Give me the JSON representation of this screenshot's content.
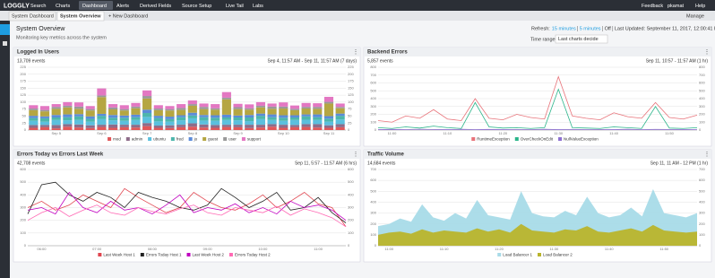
{
  "nav": {
    "logo": "LOGGLY",
    "items": [
      "Search",
      "Charts",
      "Dashboard",
      "Alerts",
      "Derived Fields",
      "Source Setup",
      "Live Tail",
      "Labs"
    ],
    "right": [
      "Feedback",
      "pkamat",
      "Help"
    ]
  },
  "tabs": {
    "items": [
      "System Dashboard",
      "System Overview",
      "+ New Dashboard"
    ],
    "manage": "Manage"
  },
  "header": {
    "title": "System Overview",
    "subtitle": "Monitoring key metrics across the system",
    "refresh_label": "Refresh:",
    "refresh_options": [
      "15 minutes",
      "5 minutes",
      "Off"
    ],
    "last_updated": "Last Updated: September 11, 2017, 12:00:41 PM",
    "time_range_label": "Time range:",
    "time_range": "Last charts decide"
  },
  "panels": [
    {
      "title": "Logged In Users",
      "events": "13,709 events",
      "range": "Sep 4, 11:57 AM - Sep 11, 11:57 AM (7 days)",
      "chart": {
        "type": "bar",
        "categories": [
          null,
          null,
          "Sep 5",
          null,
          null,
          null,
          "Sep 6",
          null,
          null,
          null,
          "Sep 7",
          null,
          null,
          null,
          "Sep 8",
          null,
          null,
          null,
          "Sep 9",
          null,
          null,
          null,
          "Sep 10",
          null,
          null,
          null,
          "Sep 11",
          null
        ],
        "ylim": [
          0,
          225
        ],
        "yticks": [
          0,
          25,
          50,
          75,
          100,
          125,
          150,
          175,
          200,
          225
        ],
        "grid": true,
        "series": [
          {
            "name": "mod",
            "color": "#e15759",
            "values": [
              8,
              10,
              6,
              12,
              9,
              7,
              11,
              8,
              10,
              9,
              14,
              8,
              7,
              10,
              12,
              9,
              8,
              11,
              10,
              7,
              9,
              12,
              8,
              10,
              11,
              9,
              8,
              10
            ]
          },
          {
            "name": "admin",
            "color": "#8e6c8a",
            "values": [
              10,
              8,
              12,
              9,
              11,
              10,
              8,
              12,
              9,
              10,
              11,
              8,
              10,
              9,
              12,
              11,
              10,
              8,
              9,
              12,
              10,
              9,
              11,
              8,
              10,
              12,
              9,
              11
            ]
          },
          {
            "name": "ubuntu",
            "color": "#5bc0de",
            "values": [
              15,
              12,
              18,
              14,
              16,
              13,
              20,
              15,
              14,
              17,
              22,
              15,
              13,
              16,
              18,
              14,
              15,
              17,
              16,
              13,
              20,
              15,
              14,
              18,
              16,
              15,
              13,
              17
            ]
          },
          {
            "name": "fred",
            "color": "#4db6ac",
            "values": [
              10,
              12,
              9,
              11,
              13,
              10,
              12,
              9,
              11,
              10,
              14,
              12,
              9,
              11,
              10,
              12,
              11,
              9,
              10,
              13,
              12,
              10,
              11,
              9,
              12,
              10,
              11,
              13
            ]
          },
          {
            "name": "jo",
            "color": "#5b8bd9",
            "values": [
              8,
              7,
              9,
              10,
              8,
              9,
              7,
              10,
              8,
              9,
              12,
              8,
              9,
              7,
              10,
              8,
              9,
              10,
              7,
              9,
              8,
              10,
              9,
              8,
              7,
              10,
              9,
              8
            ]
          },
          {
            "name": "guest",
            "color": "#b5a642",
            "values": [
              20,
              18,
              22,
              25,
              19,
              21,
              60,
              20,
              18,
              23,
              40,
              20,
              22,
              19,
              25,
              21,
              20,
              55,
              23,
              19,
              22,
              20,
              24,
              18,
              21,
              20,
              45,
              19
            ]
          },
          {
            "name": "user",
            "color": "#999999",
            "values": [
              6,
              5,
              7,
              6,
              8,
              5,
              6,
              7,
              5,
              6,
              9,
              6,
              5,
              7,
              6,
              8,
              5,
              6,
              7,
              5,
              6,
              8,
              7,
              5,
              6,
              7,
              6,
              5
            ]
          },
          {
            "name": "support",
            "color": "#e377c2",
            "values": [
              12,
              14,
              10,
              13,
              15,
              11,
              25,
              12,
              14,
              13,
              20,
              12,
              11,
              14,
              13,
              12,
              15,
              20,
              12,
              14,
              13,
              11,
              15,
              12,
              14,
              13,
              18,
              12
            ]
          }
        ]
      }
    },
    {
      "title": "Backend Errors",
      "events": "5,857 events",
      "range": "Sep 11, 10:57 - 11:57 AM (1 hr)",
      "chart": {
        "type": "line",
        "categories": [
          null,
          "11:00",
          null,
          null,
          null,
          "11:10",
          null,
          null,
          null,
          "11:20",
          null,
          null,
          null,
          "11:30",
          null,
          null,
          null,
          "11:40",
          null,
          null,
          null,
          "11:50",
          null,
          null
        ],
        "ylim": [
          0,
          800
        ],
        "yticks": [
          0,
          100,
          200,
          300,
          400,
          500,
          600,
          700,
          800
        ],
        "grid": true,
        "series": [
          {
            "name": "RuntimeException",
            "color": "#e8737a",
            "values": [
              120,
              100,
              180,
              150,
              260,
              140,
              120,
              400,
              150,
              130,
              200,
              160,
              140,
              680,
              180,
              150,
              130,
              220,
              170,
              150,
              350,
              160,
              140,
              190
            ]
          },
          {
            "name": "OverCheckOnEdit",
            "color": "#2bb58a",
            "values": [
              30,
              20,
              40,
              25,
              50,
              30,
              20,
              350,
              40,
              25,
              30,
              20,
              30,
              520,
              30,
              25,
              20,
              40,
              30,
              20,
              300,
              25,
              20,
              30
            ]
          },
          {
            "name": "NullValueException",
            "color": "#8d6fd1",
            "values": [
              5,
              8,
              6,
              10,
              7,
              5,
              9,
              6,
              8,
              5,
              7,
              6,
              9,
              5,
              8,
              6,
              7,
              5,
              9,
              6,
              8,
              7,
              5,
              6
            ]
          }
        ]
      }
    },
    {
      "title": "Errors Today vs Errors Last Week",
      "events": "42,708 events",
      "range": "Sep 11, 5:57 - 11:57 AM (6 hrs)",
      "chart": {
        "type": "line",
        "categories": [
          null,
          "06:00",
          null,
          null,
          null,
          "07:00",
          null,
          null,
          null,
          "08:00",
          null,
          null,
          null,
          "09:00",
          null,
          null,
          null,
          "10:00",
          null,
          null,
          null,
          "11:00",
          null,
          null
        ],
        "ylim": [
          0,
          600
        ],
        "yticks": [
          0,
          100,
          200,
          300,
          400,
          500,
          600
        ],
        "grid": true,
        "series": [
          {
            "name": "Last Week Host 1",
            "color": "#e0454f",
            "values": [
              300,
              350,
              280,
              320,
              400,
              350,
              300,
              450,
              380,
              320,
              260,
              300,
              420,
              350,
              300,
              280,
              330,
              400,
              300,
              350,
              420,
              330,
              300,
              150
            ]
          },
          {
            "name": "Errors Today Host 1",
            "color": "#222222",
            "values": [
              250,
              480,
              500,
              400,
              350,
              420,
              380,
              300,
              420,
              380,
              350,
              300,
              280,
              320,
              450,
              380,
              300,
              350,
              420,
              280,
              300,
              380,
              260,
              180
            ]
          },
          {
            "name": "Last Week Host 2",
            "color": "#c000c0",
            "values": [
              280,
              300,
              250,
              420,
              300,
              260,
              350,
              280,
              300,
              250,
              320,
              400,
              260,
              300,
              280,
              330,
              260,
              300,
              250,
              350,
              300,
              320,
              280,
              200
            ]
          },
          {
            "name": "Errors Today Host 2",
            "color": "#ff69b4",
            "values": [
              200,
              260,
              300,
              230,
              280,
              320,
              260,
              240,
              300,
              270,
              250,
              290,
              320,
              260,
              240,
              300,
              280,
              260,
              310,
              240,
              290,
              260,
              220,
              150
            ]
          }
        ]
      }
    },
    {
      "title": "Traffic Volume",
      "events": "14,684 events",
      "range": "Sep 11, 11 AM - 12 PM (1 hr)",
      "chart": {
        "type": "area",
        "categories": [
          null,
          "11:00",
          null,
          null,
          null,
          null,
          "11:10",
          null,
          null,
          null,
          null,
          "11:20",
          null,
          null,
          null,
          null,
          "11:30",
          null,
          null,
          null,
          null,
          "11:40",
          null,
          null,
          null,
          null,
          "11:50",
          null,
          null,
          null
        ],
        "ylim": [
          0,
          700
        ],
        "yticks": [
          0,
          100,
          200,
          300,
          400,
          500,
          600,
          700
        ],
        "grid": true,
        "series": [
          {
            "name": "Load Balancer 1",
            "color": "#a8dbe8",
            "values": [
              180,
              200,
              250,
              220,
              380,
              260,
              230,
              300,
              250,
              420,
              280,
              260,
              240,
              500,
              300,
              270,
              260,
              320,
              280,
              450,
              300,
              260,
              280,
              350,
              270,
              520,
              300,
              280,
              260,
              300
            ]
          },
          {
            "name": "Load Balancer 2",
            "color": "#b9b42c",
            "values": [
              100,
              120,
              130,
              110,
              150,
              120,
              140,
              130,
              120,
              160,
              130,
              150,
              120,
              200,
              140,
              130,
              120,
              150,
              140,
              180,
              130,
              120,
              140,
              160,
              130,
              190,
              140,
              130,
              120,
              130
            ]
          }
        ]
      }
    }
  ]
}
